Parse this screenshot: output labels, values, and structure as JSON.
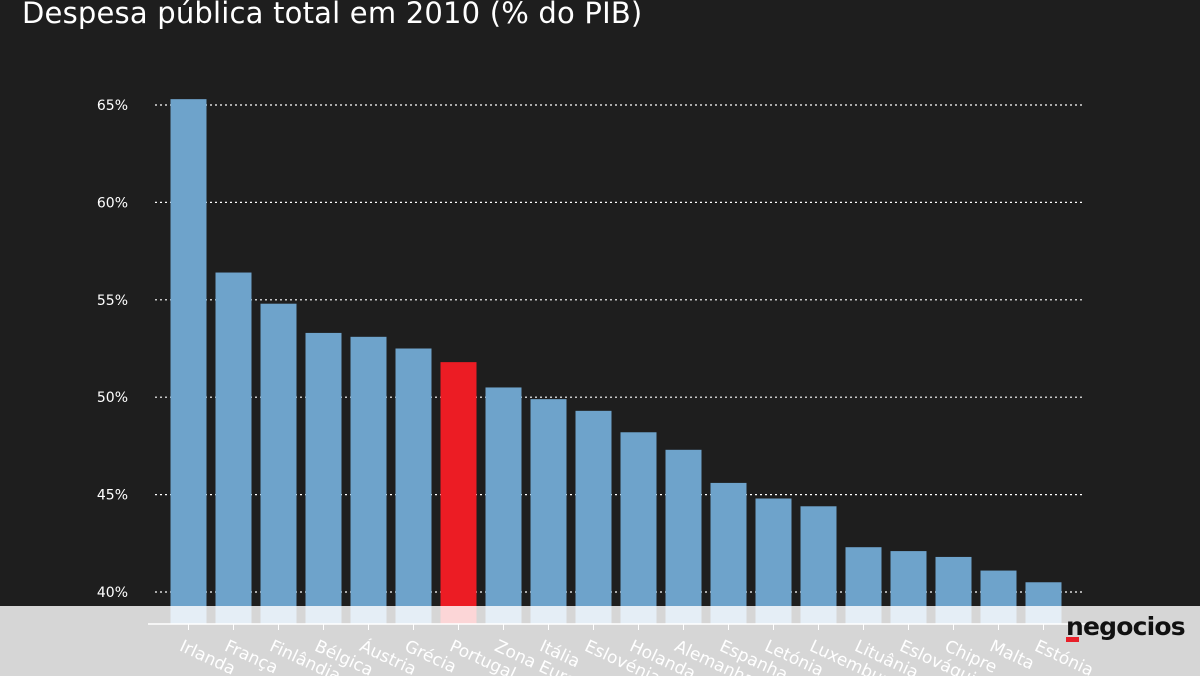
{
  "chart_data": {
    "type": "bar",
    "title": "Despesa pública total em 2010 (% do PIB)",
    "categories": [
      "Irlanda",
      "França",
      "Finlândia",
      "Bélgica",
      "Áustria",
      "Grécia",
      "Portugal",
      "Zona Euro",
      "Itália",
      "Eslovénia",
      "Holanda",
      "Alemanha",
      "Espanha",
      "Letónia",
      "Luxemburgo",
      "Lituânia",
      "Eslováquia",
      "Chipre",
      "Malta",
      "Estónia"
    ],
    "values": [
      65.3,
      56.4,
      54.8,
      53.3,
      53.1,
      52.5,
      51.8,
      50.5,
      49.9,
      49.3,
      48.2,
      47.3,
      45.6,
      44.8,
      44.4,
      42.3,
      42.1,
      41.8,
      41.1,
      40.5
    ],
    "highlight": "Portugal",
    "ylim": [
      40,
      65
    ],
    "yticks": [
      40,
      45,
      50,
      55,
      60,
      65
    ],
    "ytick_labels": [
      "40%",
      "45%",
      "50%",
      "55%",
      "60%",
      "65%"
    ],
    "grid": true,
    "colors": {
      "bar": "#6ea3cb",
      "highlight": "#ec1c24",
      "background": "#1e1e1e",
      "grid": "#ffffff"
    }
  },
  "brand": {
    "name": "negocios",
    "accent": "#e8202a"
  }
}
